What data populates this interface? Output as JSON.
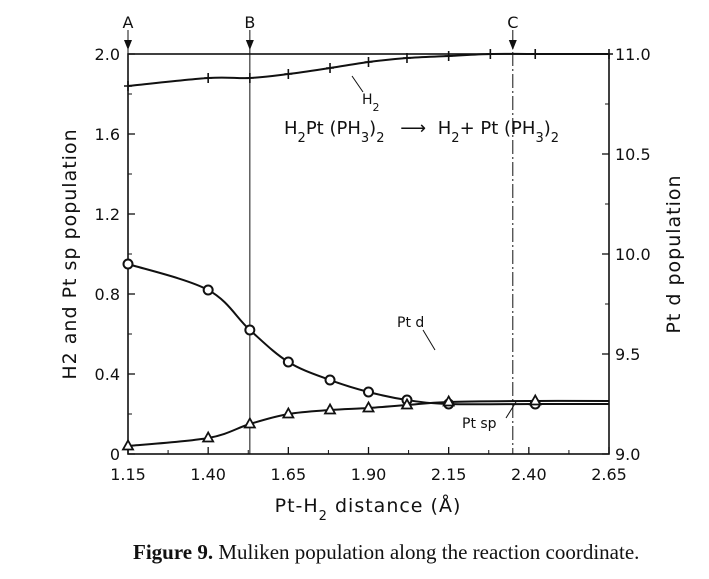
{
  "chart_data": {
    "type": "line",
    "x_label_prefix": "Pt-H",
    "x_label_sub": "2",
    "x_label_suffix": " distance (Å)",
    "y_left_label": "H2 and Pt sp population",
    "y_right_label": "Pt d population",
    "xlim": [
      1.15,
      2.65
    ],
    "ylim_left": [
      0,
      2.0
    ],
    "ylim_right": [
      9.0,
      11.0
    ],
    "x_ticks": [
      "1.15",
      "1.40",
      "1.65",
      "1.90",
      "2.15",
      "2.40",
      "2.65"
    ],
    "y_left_ticks": [
      "0",
      "0.4",
      "0.8",
      "1.2",
      "1.6",
      "2.0"
    ],
    "y_right_ticks": [
      "9.0",
      "9.5",
      "10.0",
      "10.5",
      "11.0"
    ],
    "grid": false,
    "reference_lines": [
      {
        "label": "A",
        "x": 1.15,
        "style": "solid"
      },
      {
        "label": "B",
        "x": 1.53,
        "style": "solid"
      },
      {
        "label": "C",
        "x": 2.35,
        "style": "dashed"
      }
    ],
    "series": [
      {
        "name": "H2",
        "axis": "left",
        "marker": "plus",
        "x": [
          1.15,
          1.4,
          1.53,
          1.65,
          1.78,
          1.9,
          2.02,
          2.15,
          2.28,
          2.42,
          2.65
        ],
        "y": [
          1.84,
          1.88,
          1.88,
          1.9,
          1.93,
          1.96,
          1.98,
          1.99,
          2.0,
          2.0,
          2.0
        ]
      },
      {
        "name": "Pt sp",
        "axis": "left",
        "marker": "circle",
        "x": [
          1.15,
          1.4,
          1.53,
          1.65,
          1.78,
          1.9,
          2.02,
          2.15,
          2.42,
          2.65
        ],
        "y": [
          0.95,
          0.82,
          0.62,
          0.46,
          0.37,
          0.31,
          0.27,
          0.25,
          0.25,
          0.25
        ]
      },
      {
        "name": "Pt d",
        "axis": "right",
        "marker": "triangle",
        "x": [
          1.15,
          1.4,
          1.53,
          1.65,
          1.78,
          1.9,
          2.02,
          2.15,
          2.42,
          2.65
        ],
        "y": [
          9.04,
          9.08,
          9.15,
          9.2,
          9.22,
          9.23,
          9.245,
          9.26,
          9.265,
          9.265
        ]
      }
    ],
    "annotation_reaction_left": "H",
    "annotation_reaction_right": "H",
    "annotation": {
      "p1": "H",
      "s1": "2",
      "p2": "Pt (PH",
      "s2": "3",
      "p3": ")",
      "s3": "2",
      "arrow": "⟶",
      "p4": "H",
      "s4": "2",
      "p5": "+ Pt (PH",
      "s5": "3",
      "p6": ")",
      "s6": "2"
    },
    "label_h2_main": "H",
    "label_h2_sub": "2",
    "label_ptd": "Pt d",
    "label_ptsp": "Pt sp"
  },
  "caption": {
    "prefix": "Figure 9.",
    "text": "Muliken population along the reaction coordinate."
  }
}
